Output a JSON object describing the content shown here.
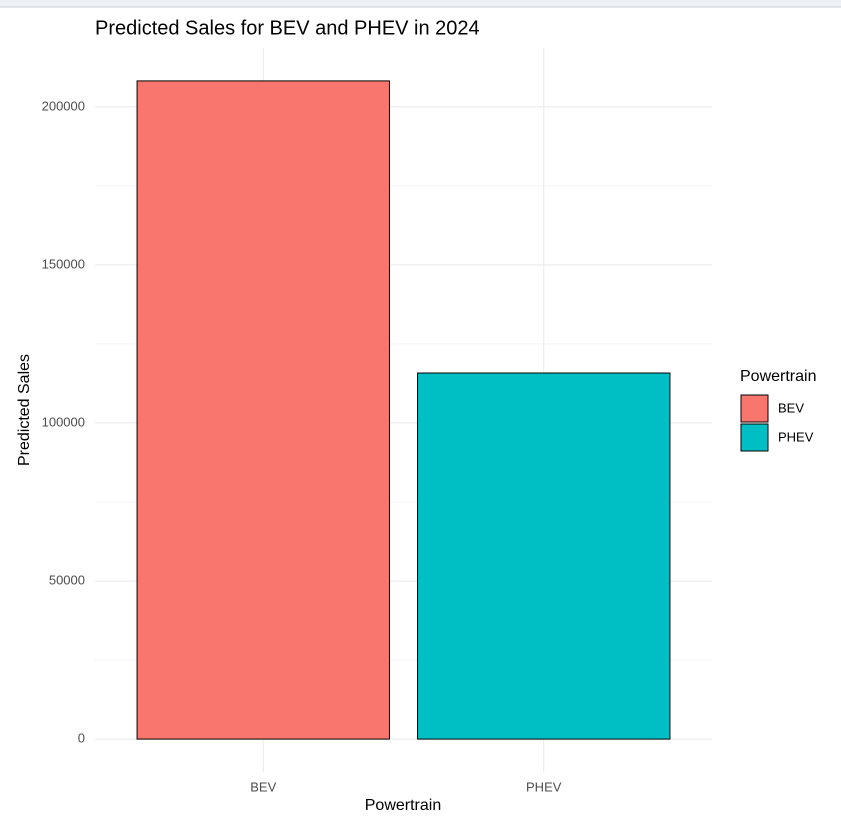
{
  "chart_data": {
    "type": "bar",
    "title": "Predicted Sales for BEV and PHEV in 2024",
    "x_label": "Powertrain",
    "y_label": "Predicted Sales",
    "categories": [
      "BEV",
      "PHEV"
    ],
    "values": [
      208200,
      115800
    ],
    "colors": [
      "#F8766D",
      "#00BFC4"
    ],
    "ylim": [
      -10410,
      218610
    ],
    "yticks": [
      0,
      50000,
      100000,
      150000,
      200000
    ],
    "y_minor_ticks": [
      25000,
      75000,
      125000,
      175000
    ],
    "grid": true,
    "legend_title": "Powertrain",
    "legend_position": "right"
  }
}
